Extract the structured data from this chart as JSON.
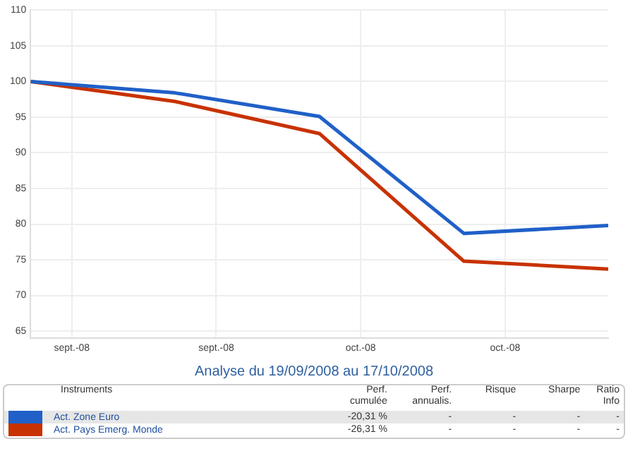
{
  "chart_data": {
    "type": "line",
    "title": "Analyse du 19/09/2008 au 17/10/2008",
    "x": [
      "2008-09-19",
      "2008-09-26",
      "2008-10-03",
      "2008-10-10",
      "2008-10-17"
    ],
    "series": [
      {
        "name": "Act. Zone Euro",
        "color": "#2060c8",
        "values": [
          100,
          98.4,
          95.1,
          78.7,
          79.8
        ]
      },
      {
        "name": "Act. Pays Emerg. Monde",
        "color": "#c83200",
        "values": [
          100,
          97.2,
          92.7,
          74.8,
          73.7
        ]
      }
    ],
    "xlim": [
      "2008-09-19",
      "2008-10-17"
    ],
    "xticks": [
      {
        "value": "2008-09-21",
        "label": "sept.-08"
      },
      {
        "value": "2008-09-28",
        "label": "sept.-08"
      },
      {
        "value": "2008-10-05",
        "label": "oct.-08"
      },
      {
        "value": "2008-10-12",
        "label": "oct.-08"
      }
    ],
    "ylim": [
      64,
      110
    ],
    "yticks": [
      65,
      70,
      75,
      80,
      85,
      90,
      95,
      100,
      105,
      110
    ],
    "grid": true,
    "legend": "bottom",
    "marker": "none",
    "line_style": "solid",
    "annotations": [
      "Instruments",
      "Perf. cumulée",
      "Perf. annualis.",
      "Risque",
      "Sharpe",
      "Ratio Info",
      "-20,31 %",
      "-",
      "-",
      "-",
      "-",
      "-26,31 %",
      "-",
      "-",
      "-",
      "-"
    ]
  }
}
